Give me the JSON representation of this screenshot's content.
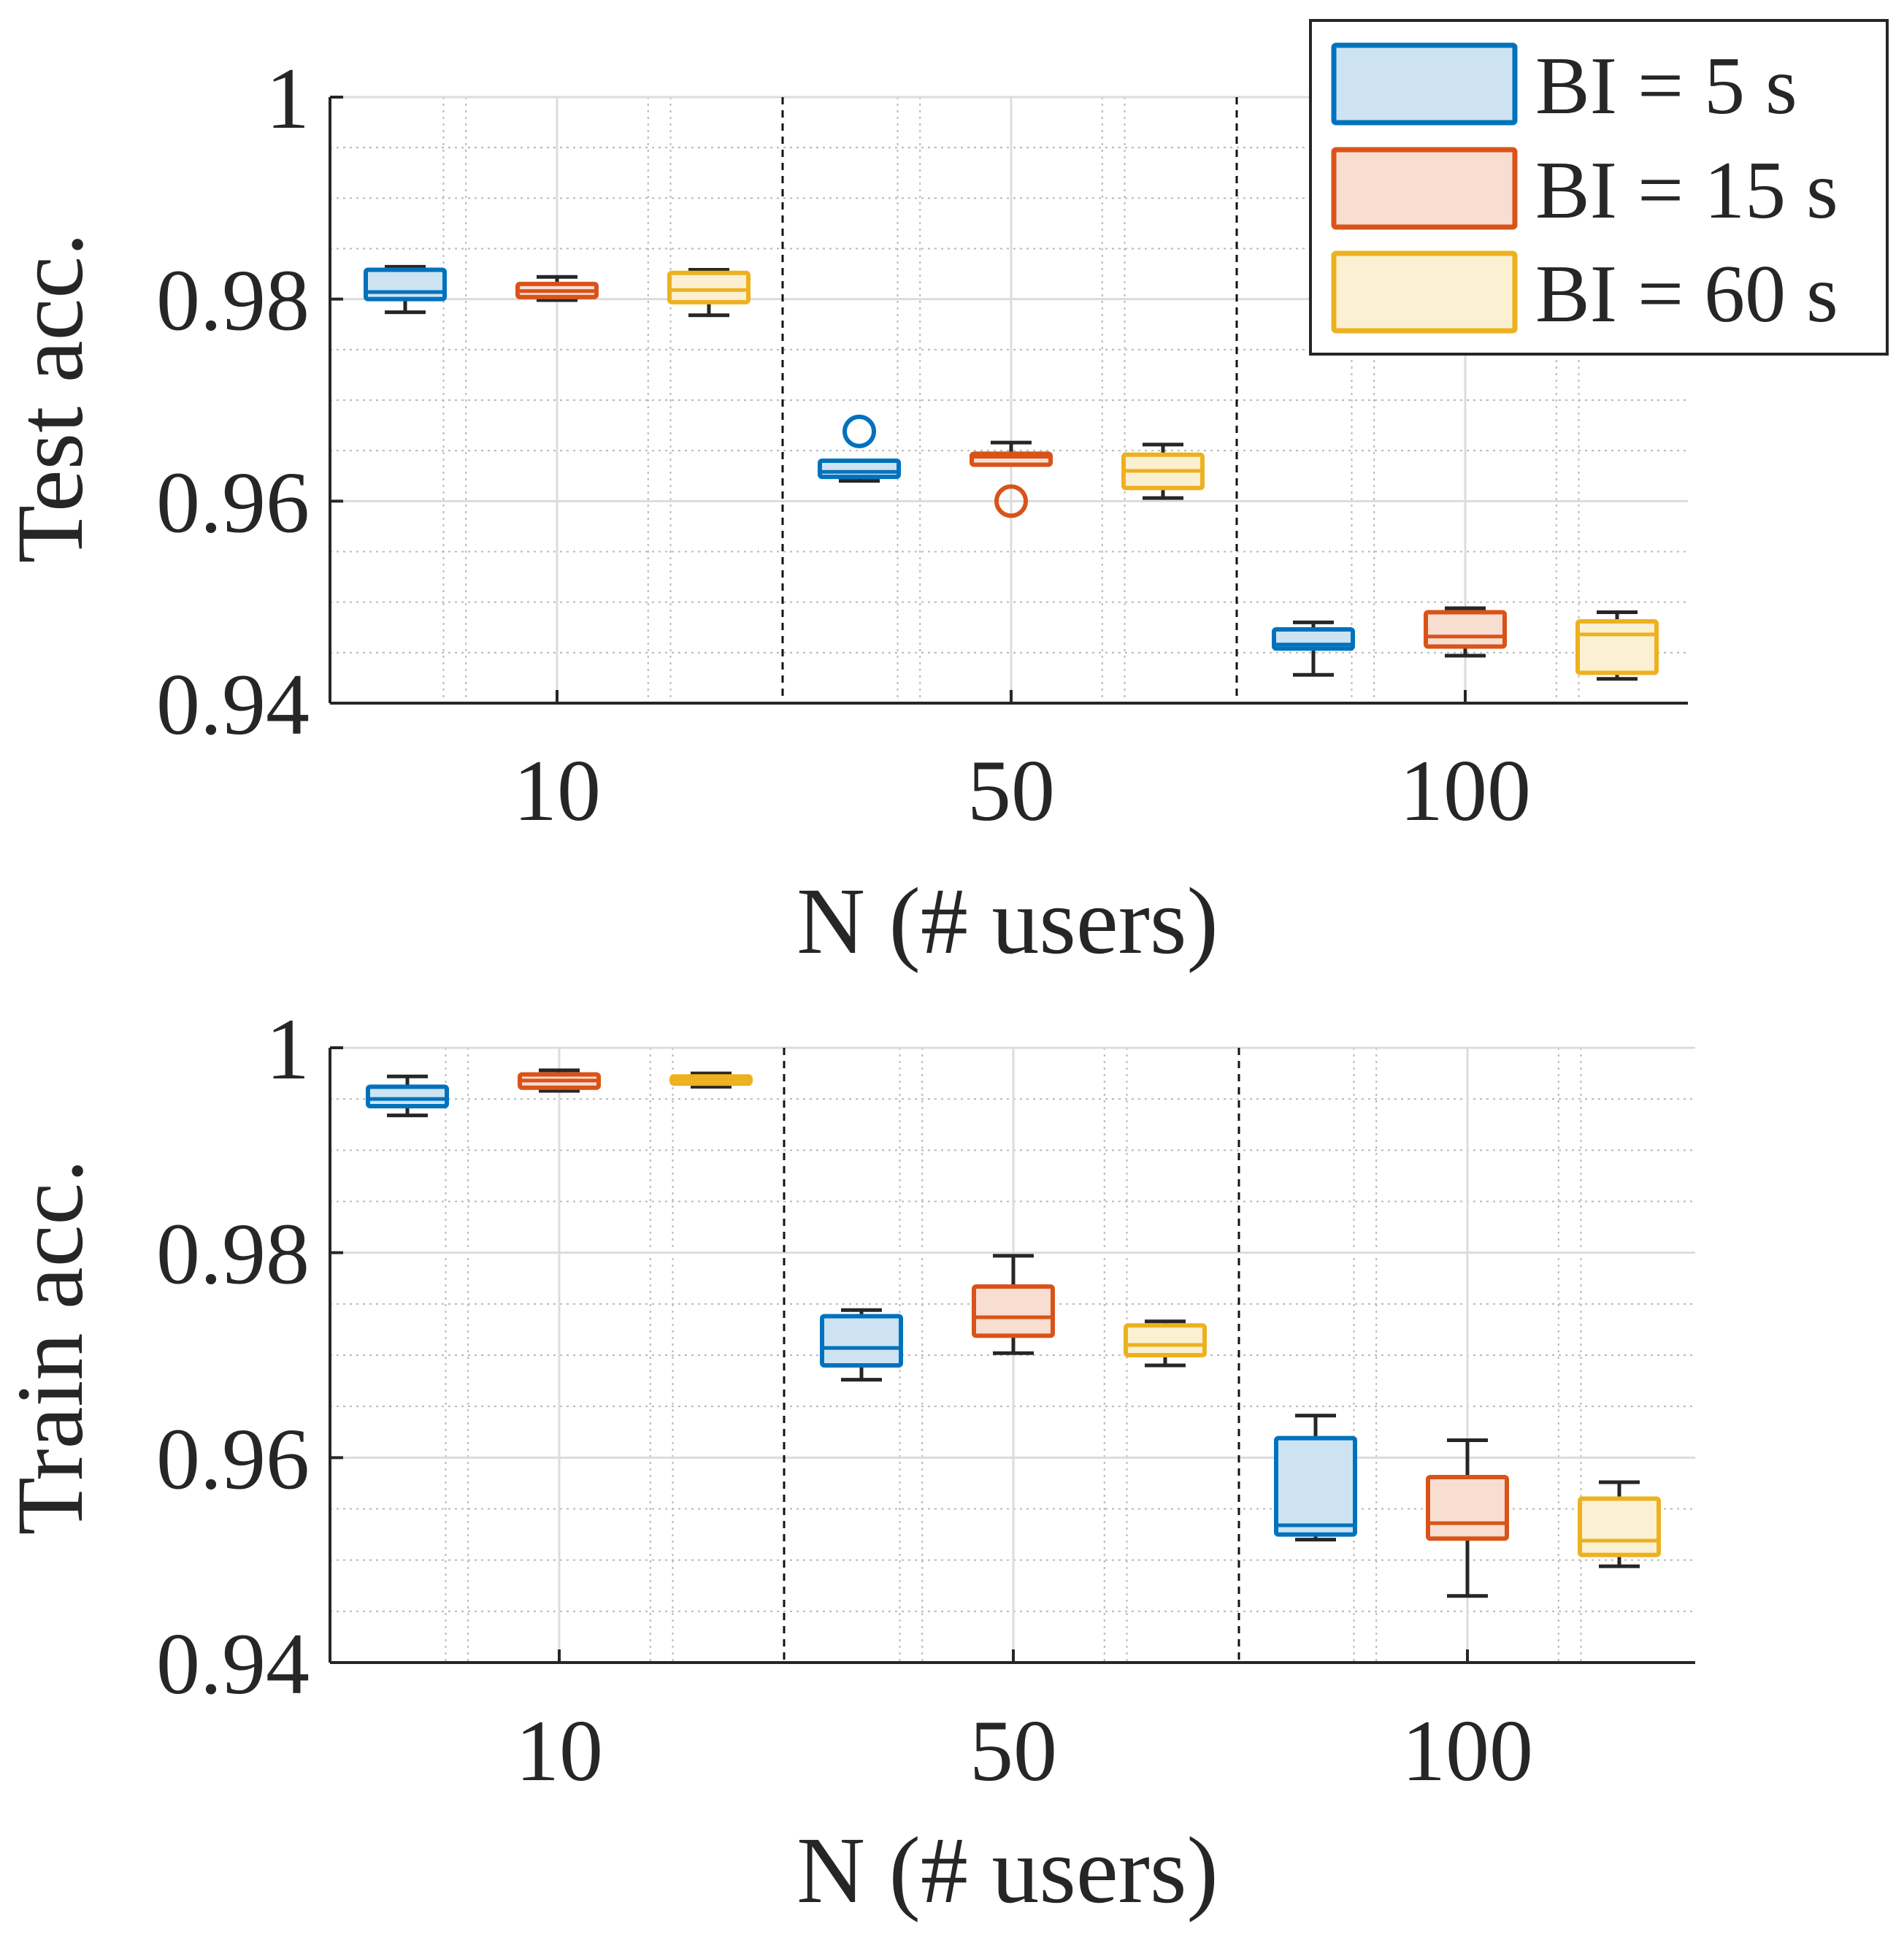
{
  "chart_data": [
    {
      "type": "boxplot",
      "ylabel": "Test acc.",
      "xlabel": "N (# users)",
      "ylim": [
        0.94,
        1.0
      ],
      "yticks": [
        0.94,
        0.96,
        0.98,
        1
      ],
      "ytick_labels": [
        "0.94",
        "0.96",
        "0.98",
        "1"
      ],
      "categories": [
        "10",
        "50",
        "100"
      ],
      "series": [
        {
          "name": "BI = 5 s",
          "boxes": [
            {
              "whisker_low": 0.9787,
              "q1": 0.98,
              "median": 0.9807,
              "q3": 0.9829,
              "whisker_high": 0.9832,
              "outliers": []
            },
            {
              "whisker_low": 0.962,
              "q1": 0.9624,
              "median": 0.9629,
              "q3": 0.964,
              "whisker_high": 0.964,
              "outliers": [
                0.9669
              ]
            },
            {
              "whisker_low": 0.9428,
              "q1": 0.9454,
              "median": 0.9458,
              "q3": 0.9473,
              "whisker_high": 0.948,
              "outliers": []
            }
          ]
        },
        {
          "name": "BI = 15 s",
          "boxes": [
            {
              "whisker_low": 0.9799,
              "q1": 0.9802,
              "median": 0.9808,
              "q3": 0.9815,
              "whisker_high": 0.9822,
              "outliers": []
            },
            {
              "whisker_low": 0.9636,
              "q1": 0.9636,
              "median": 0.9644,
              "q3": 0.9647,
              "whisker_high": 0.9658,
              "outliers": [
                0.96
              ]
            },
            {
              "whisker_low": 0.9447,
              "q1": 0.9456,
              "median": 0.9466,
              "q3": 0.949,
              "whisker_high": 0.9494,
              "outliers": []
            }
          ]
        },
        {
          "name": "BI = 60 s",
          "boxes": [
            {
              "whisker_low": 0.9784,
              "q1": 0.9797,
              "median": 0.9809,
              "q3": 0.9826,
              "whisker_high": 0.9829,
              "outliers": []
            },
            {
              "whisker_low": 0.9603,
              "q1": 0.9613,
              "median": 0.963,
              "q3": 0.9646,
              "whisker_high": 0.9656,
              "outliers": []
            },
            {
              "whisker_low": 0.9424,
              "q1": 0.943,
              "median": 0.9468,
              "q3": 0.9481,
              "whisker_high": 0.949,
              "outliers": []
            }
          ]
        }
      ]
    },
    {
      "type": "boxplot",
      "ylabel": "Train acc.",
      "xlabel": "N (# users)",
      "ylim": [
        0.94,
        1.0
      ],
      "yticks": [
        0.94,
        0.96,
        0.98,
        1
      ],
      "ytick_labels": [
        "0.94",
        "0.96",
        "0.98",
        "1"
      ],
      "categories": [
        "10",
        "50",
        "100"
      ],
      "series": [
        {
          "name": "BI = 5 s",
          "boxes": [
            {
              "whisker_low": 0.9934,
              "q1": 0.9943,
              "median": 0.995,
              "q3": 0.9962,
              "whisker_high": 0.9972,
              "outliers": []
            },
            {
              "whisker_low": 0.9676,
              "q1": 0.969,
              "median": 0.9707,
              "q3": 0.9738,
              "whisker_high": 0.9744,
              "outliers": []
            },
            {
              "whisker_low": 0.952,
              "q1": 0.9525,
              "median": 0.9534,
              "q3": 0.9619,
              "whisker_high": 0.9641,
              "outliers": []
            }
          ]
        },
        {
          "name": "BI = 15 s",
          "boxes": [
            {
              "whisker_low": 0.9958,
              "q1": 0.9961,
              "median": 0.9968,
              "q3": 0.9974,
              "whisker_high": 0.9978,
              "outliers": []
            },
            {
              "whisker_low": 0.9702,
              "q1": 0.9719,
              "median": 0.9737,
              "q3": 0.9767,
              "whisker_high": 0.9797,
              "outliers": []
            },
            {
              "whisker_low": 0.9465,
              "q1": 0.9521,
              "median": 0.9536,
              "q3": 0.9581,
              "whisker_high": 0.9617,
              "outliers": []
            }
          ]
        },
        {
          "name": "BI = 60 s",
          "boxes": [
            {
              "whisker_low": 0.9962,
              "q1": 0.9965,
              "median": 0.9969,
              "q3": 0.9972,
              "whisker_high": 0.9975,
              "outliers": []
            },
            {
              "whisker_low": 0.969,
              "q1": 0.97,
              "median": 0.971,
              "q3": 0.9729,
              "whisker_high": 0.9733,
              "outliers": []
            },
            {
              "whisker_low": 0.9494,
              "q1": 0.9505,
              "median": 0.9519,
              "q3": 0.956,
              "whisker_high": 0.9576,
              "outliers": []
            }
          ]
        }
      ]
    }
  ],
  "legend": {
    "placement": "top-right",
    "entries": [
      "BI = 5 s",
      "BI = 15 s",
      "BI = 60 s"
    ]
  },
  "colors": {
    "series": [
      "#0072BD",
      "#D95319",
      "#EDB120"
    ],
    "series_fill": [
      "#cde3f1",
      "#f8ddd1",
      "#fcf0d2"
    ],
    "whisker": "#262626",
    "axis": "#262626",
    "grid_major": "#dcdcdc",
    "grid_minor": "#b8b8b8"
  }
}
